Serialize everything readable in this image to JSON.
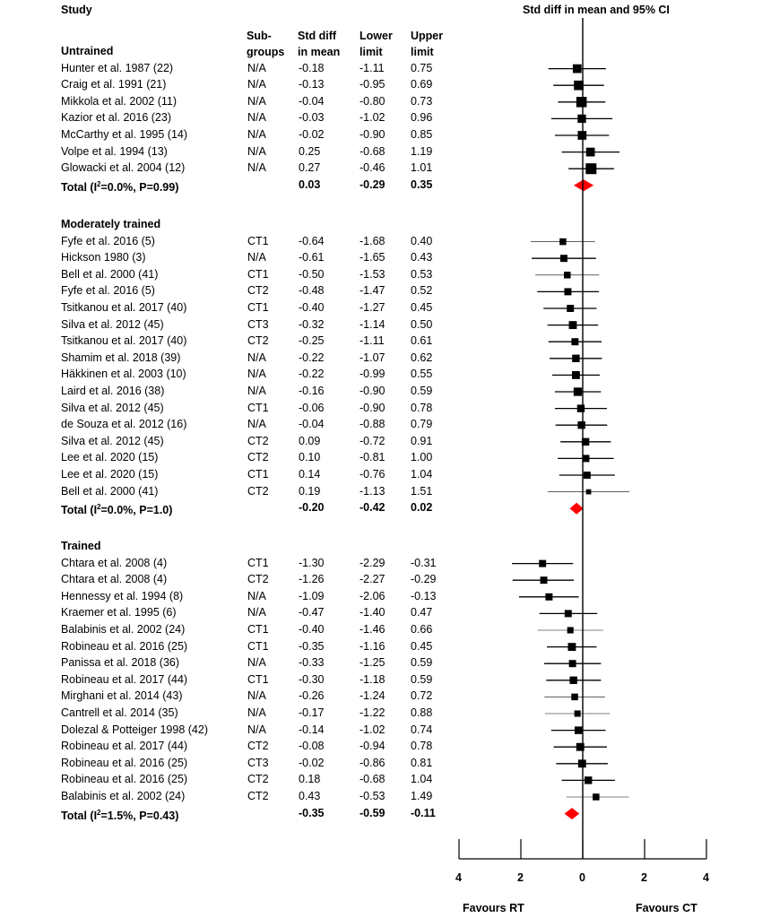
{
  "header": {
    "study_label": "Study",
    "plot_title": "Std diff in mean and 95% CI",
    "col_subgroups_1": "Sub-",
    "col_subgroups_2": "groups",
    "col_std_1": "Std diff",
    "col_std_2": "in mean",
    "col_lower_1": "Lower",
    "col_lower_2": "limit",
    "col_upper_1": "Upper",
    "col_upper_2": "limit"
  },
  "chart_data": {
    "type": "forest",
    "title": "Std diff in mean and 95% CI",
    "xlim": [
      -4,
      4
    ],
    "x_ticks": [
      "4",
      "2",
      "0",
      "2",
      "4"
    ],
    "x_tick_values": [
      -4,
      -2,
      0,
      2,
      4
    ],
    "favours_left": "Favours RT",
    "favours_right": "Favours CT",
    "groups": [
      {
        "name": "Untrained",
        "studies": [
          {
            "study": "Hunter et al. 1987 (22)",
            "subgroup": "N/A",
            "std_diff": "-0.18",
            "lower": "-1.11",
            "upper": "0.75",
            "weight": 0.75
          },
          {
            "study": "Craig et al. 1991 (21)",
            "subgroup": "N/A",
            "std_diff": "-0.13",
            "lower": "-0.95",
            "upper": "0.69",
            "weight": 0.85
          },
          {
            "study": "Mikkola et al. 2002 (11)",
            "subgroup": "N/A",
            "std_diff": "-0.04",
            "lower": "-0.80",
            "upper": "0.73",
            "weight": 0.95
          },
          {
            "study": "Kazior et al. 2016 (23)",
            "subgroup": "N/A",
            "std_diff": "-0.03",
            "lower": "-1.02",
            "upper": "0.96",
            "weight": 0.7
          },
          {
            "study": "McCarthy et al. 1995 (14)",
            "subgroup": "N/A",
            "std_diff": "-0.02",
            "lower": "-0.90",
            "upper": "0.85",
            "weight": 0.75
          },
          {
            "study": "Volpe et al. 1994 (13)",
            "subgroup": "N/A",
            "std_diff": "0.25",
            "lower": "-0.68",
            "upper": "1.19",
            "weight": 0.75
          },
          {
            "study": "Glowacki et al. 2004 (12)",
            "subgroup": "N/A",
            "std_diff": "0.27",
            "lower": "-0.46",
            "upper": "1.01",
            "weight": 1.0
          }
        ],
        "total": {
          "label_prefix": "Total (I",
          "superscript": "2",
          "label_suffix": "=0.0%, P=0.99)",
          "std_diff": "0.03",
          "lower": "-0.29",
          "upper": "0.35"
        }
      },
      {
        "name": "Moderately trained",
        "studies": [
          {
            "study": "Fyfe et al. 2016 (5)",
            "subgroup": "CT1",
            "std_diff": "-0.64",
            "lower": "-1.68",
            "upper": "0.40",
            "weight": 0.5
          },
          {
            "study": "Hickson 1980 (3)",
            "subgroup": "N/A",
            "std_diff": "-0.61",
            "lower": "-1.65",
            "upper": "0.43",
            "weight": 0.55
          },
          {
            "study": "Bell et al. 2000 (41)",
            "subgroup": "CT1",
            "std_diff": "-0.50",
            "lower": "-1.53",
            "upper": "0.53",
            "weight": 0.5
          },
          {
            "study": "Fyfe et al. 2016 (5)",
            "subgroup": "CT2",
            "std_diff": "-0.48",
            "lower": "-1.47",
            "upper": "0.52",
            "weight": 0.55
          },
          {
            "study": "Tsitkanou et al. 2017 (40)",
            "subgroup": "CT1",
            "std_diff": "-0.40",
            "lower": "-1.27",
            "upper": "0.45",
            "weight": 0.55
          },
          {
            "study": "Silva et al. 2012 (45)",
            "subgroup": "CT3",
            "std_diff": "-0.32",
            "lower": "-1.14",
            "upper": "0.50",
            "weight": 0.65
          },
          {
            "study": "Tsitkanou et al. 2017 (40)",
            "subgroup": "CT2",
            "std_diff": "-0.25",
            "lower": "-1.11",
            "upper": "0.61",
            "weight": 0.55
          },
          {
            "study": "Shamim et al. 2018 (39)",
            "subgroup": "N/A",
            "std_diff": "-0.22",
            "lower": "-1.07",
            "upper": "0.62",
            "weight": 0.6
          },
          {
            "study": "Häkkinen et al. 2003 (10)",
            "subgroup": "N/A",
            "std_diff": "-0.22",
            "lower": "-0.99",
            "upper": "0.55",
            "weight": 0.65
          },
          {
            "study": "Laird et al. 2016 (38)",
            "subgroup": "N/A",
            "std_diff": "-0.16",
            "lower": "-0.90",
            "upper": "0.59",
            "weight": 0.7
          },
          {
            "study": "Silva et al. 2012 (45)",
            "subgroup": "CT1",
            "std_diff": "-0.06",
            "lower": "-0.90",
            "upper": "0.78",
            "weight": 0.6
          },
          {
            "study": "de Souza et al. 2012 (16)",
            "subgroup": "N/A",
            "std_diff": "-0.04",
            "lower": "-0.88",
            "upper": "0.79",
            "weight": 0.6
          },
          {
            "study": "Silva et al. 2012 (45)",
            "subgroup": "CT2",
            "std_diff": "0.09",
            "lower": "-0.72",
            "upper": "0.91",
            "weight": 0.6
          },
          {
            "study": "Lee et al. 2020 (15)",
            "subgroup": "CT2",
            "std_diff": "0.10",
            "lower": "-0.81",
            "upper": "1.00",
            "weight": 0.55
          },
          {
            "study": "Lee et al. 2020 (15)",
            "subgroup": "CT1",
            "std_diff": "0.14",
            "lower": "-0.76",
            "upper": "1.04",
            "weight": 0.55
          },
          {
            "study": "Bell et al. 2000 (41)",
            "subgroup": "CT2",
            "std_diff": "0.19",
            "lower": "-1.13",
            "upper": "1.51",
            "weight": 0.3
          }
        ],
        "total": {
          "label_prefix": "Total (I",
          "superscript": "2",
          "label_suffix": "=0.0%, P=1.0)",
          "std_diff": "-0.20",
          "lower": "-0.42",
          "upper": "0.02"
        }
      },
      {
        "name": "Trained",
        "studies": [
          {
            "study": "Chtara et al. 2008 (4)",
            "subgroup": "CT1",
            "std_diff": "-1.30",
            "lower": "-2.29",
            "upper": "-0.31",
            "weight": 0.55
          },
          {
            "study": "Chtara et al. 2008 (4)",
            "subgroup": "CT2",
            "std_diff": "-1.26",
            "lower": "-2.27",
            "upper": "-0.29",
            "weight": 0.55
          },
          {
            "study": "Hennessy et al. 1994 (8)",
            "subgroup": "N/A",
            "std_diff": "-1.09",
            "lower": "-2.06",
            "upper": "-0.13",
            "weight": 0.55
          },
          {
            "study": "Kraemer et al. 1995 (6)",
            "subgroup": "N/A",
            "std_diff": "-0.47",
            "lower": "-1.40",
            "upper": "0.47",
            "weight": 0.55
          },
          {
            "study": "Balabinis et al. 2002 (24)",
            "subgroup": "CT1",
            "std_diff": "-0.40",
            "lower": "-1.46",
            "upper": "0.66",
            "weight": 0.45
          },
          {
            "study": "Robineau et al. 2016 (25)",
            "subgroup": "CT1",
            "std_diff": "-0.35",
            "lower": "-1.16",
            "upper": "0.45",
            "weight": 0.65
          },
          {
            "study": "Panissa et al. 2018 (36)",
            "subgroup": "N/A",
            "std_diff": "-0.33",
            "lower": "-1.25",
            "upper": "0.59",
            "weight": 0.55
          },
          {
            "study": "Robineau et al. 2017 (44)",
            "subgroup": "CT1",
            "std_diff": "-0.30",
            "lower": "-1.18",
            "upper": "0.59",
            "weight": 0.6
          },
          {
            "study": "Mirghani et al. 2014 (43)",
            "subgroup": "N/A",
            "std_diff": "-0.26",
            "lower": "-1.24",
            "upper": "0.72",
            "weight": 0.5
          },
          {
            "study": "Cantrell et al. 2014 (35)",
            "subgroup": "N/A",
            "std_diff": "-0.17",
            "lower": "-1.22",
            "upper": "0.88",
            "weight": 0.45
          },
          {
            "study": "Dolezal & Potteiger 1998 (42)",
            "subgroup": "N/A",
            "std_diff": "-0.14",
            "lower": "-1.02",
            "upper": "0.74",
            "weight": 0.6
          },
          {
            "study": "Robineau et al. 2017 (44)",
            "subgroup": "CT2",
            "std_diff": "-0.08",
            "lower": "-0.94",
            "upper": "0.78",
            "weight": 0.65
          },
          {
            "study": "Robineau et al. 2016 (25)",
            "subgroup": "CT3",
            "std_diff": "-0.02",
            "lower": "-0.86",
            "upper": "0.81",
            "weight": 0.65
          },
          {
            "study": "Robineau et al. 2016 (25)",
            "subgroup": "CT2",
            "std_diff": "0.18",
            "lower": "-0.68",
            "upper": "1.04",
            "weight": 0.6
          },
          {
            "study": "Balabinis et al. 2002 (24)",
            "subgroup": "CT2",
            "std_diff": "0.43",
            "lower": "-0.53",
            "upper": "1.49",
            "weight": 0.5
          }
        ],
        "total": {
          "label_prefix": "Total (I",
          "superscript": "2",
          "label_suffix": "=1.5%, P=0.43)",
          "std_diff": "-0.35",
          "lower": "-0.59",
          "upper": "-0.11"
        }
      }
    ],
    "colors": {
      "marker": "#000000",
      "summary_diamond": "#ff0000",
      "ci_line": "#000000"
    }
  }
}
